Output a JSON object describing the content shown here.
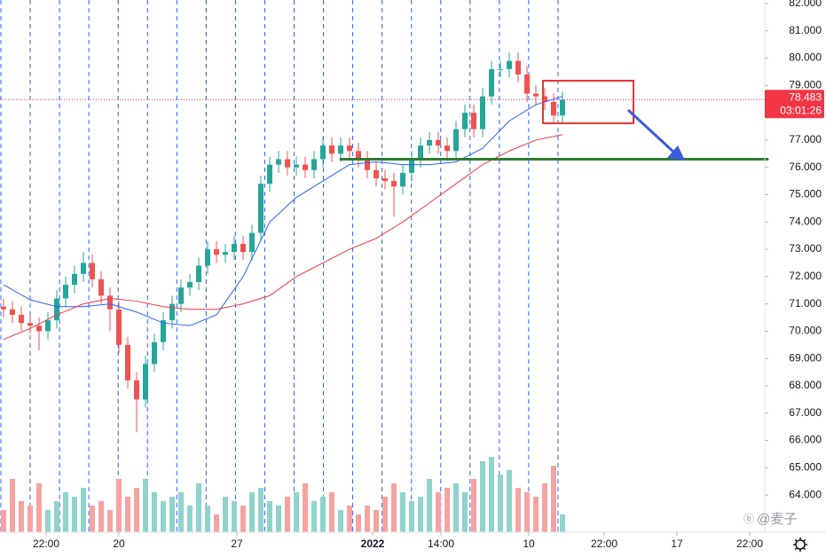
{
  "chart_data": {
    "type": "candlestick",
    "x": [
      0,
      1,
      2,
      3,
      4,
      5,
      6,
      7,
      8,
      9,
      10,
      11,
      12,
      13,
      14,
      15,
      16,
      17,
      18,
      19,
      20,
      21,
      22,
      23,
      24,
      25,
      26,
      27,
      28,
      29,
      30,
      31,
      32,
      33,
      34,
      35,
      36,
      37,
      38,
      39,
      40,
      41,
      42,
      43,
      44,
      45,
      46,
      47,
      48,
      49,
      50,
      51,
      52,
      53,
      54,
      55,
      56,
      57,
      58,
      59,
      60,
      61,
      62,
      63
    ],
    "open": [
      70.9,
      70.8,
      70.6,
      70.3,
      70.2,
      70.0,
      70.4,
      71.2,
      71.7,
      72.1,
      72.5,
      71.9,
      71.3,
      70.8,
      69.5,
      68.2,
      67.5,
      68.8,
      69.6,
      70.4,
      71.0,
      71.6,
      71.8,
      72.4,
      73.0,
      72.8,
      72.9,
      73.2,
      72.9,
      73.6,
      75.4,
      76.1,
      76.3,
      76.0,
      76.1,
      75.9,
      76.3,
      76.8,
      76.5,
      76.8,
      76.6,
      76.3,
      75.9,
      75.6,
      75.5,
      75.3,
      75.8,
      76.3,
      76.8,
      77.0,
      76.8,
      76.6,
      77.4,
      78.0,
      77.4,
      78.6,
      79.6,
      79.6,
      79.9,
      79.4,
      78.7,
      78.6,
      78.4,
      77.9
    ],
    "high": [
      71.2,
      71.1,
      70.9,
      70.6,
      70.5,
      70.7,
      71.5,
      72.0,
      72.4,
      72.9,
      72.8,
      72.2,
      71.6,
      71.1,
      69.8,
      68.5,
      69.1,
      69.9,
      70.7,
      71.3,
      71.9,
      72.1,
      72.7,
      73.3,
      73.3,
      73.2,
      73.5,
      73.5,
      73.9,
      75.7,
      76.4,
      76.6,
      76.6,
      76.4,
      76.4,
      76.6,
      77.1,
      77.1,
      77.1,
      77.1,
      76.9,
      76.6,
      76.2,
      75.9,
      75.8,
      76.1,
      76.6,
      77.1,
      77.3,
      77.3,
      77.1,
      77.7,
      78.3,
      78.3,
      78.9,
      79.9,
      79.9,
      80.2,
      80.2,
      79.7,
      79.0,
      78.9,
      78.7,
      78.78
    ],
    "low": [
      70.5,
      70.3,
      70.0,
      69.9,
      69.3,
      69.7,
      70.1,
      70.9,
      71.4,
      71.8,
      71.6,
      71.0,
      70.0,
      69.2,
      67.9,
      66.3,
      67.2,
      68.5,
      69.3,
      70.1,
      70.7,
      71.3,
      71.5,
      72.1,
      72.5,
      72.5,
      72.6,
      72.6,
      72.6,
      73.3,
      75.1,
      75.8,
      75.7,
      75.7,
      75.6,
      75.6,
      76.0,
      76.2,
      76.2,
      76.3,
      76.0,
      75.6,
      75.3,
      75.2,
      74.2,
      75.0,
      75.5,
      76.0,
      76.5,
      76.5,
      76.3,
      76.3,
      77.1,
      77.1,
      77.1,
      78.3,
      79.3,
      79.3,
      79.1,
      78.4,
      78.3,
      78.1,
      77.6,
      77.6
    ],
    "close": [
      70.8,
      70.6,
      70.3,
      70.2,
      70.0,
      70.4,
      71.2,
      71.7,
      72.1,
      72.5,
      71.9,
      71.3,
      70.8,
      69.5,
      68.2,
      67.5,
      68.8,
      69.6,
      70.4,
      71.0,
      71.6,
      71.8,
      72.4,
      73.0,
      72.8,
      72.9,
      73.2,
      72.9,
      73.6,
      75.4,
      76.1,
      76.3,
      76.0,
      76.1,
      75.9,
      76.3,
      76.8,
      76.5,
      76.8,
      76.6,
      76.3,
      75.9,
      75.6,
      75.5,
      75.3,
      75.8,
      76.3,
      76.8,
      77.0,
      76.8,
      76.6,
      77.4,
      78.0,
      77.4,
      78.6,
      79.6,
      79.6,
      79.9,
      79.4,
      78.7,
      78.6,
      78.4,
      77.9,
      78.48
    ],
    "volume": [
      25,
      60,
      35,
      30,
      55,
      25,
      35,
      45,
      40,
      50,
      30,
      35,
      25,
      60,
      40,
      50,
      60,
      45,
      35,
      40,
      45,
      30,
      55,
      30,
      20,
      40,
      35,
      30,
      45,
      50,
      35,
      30,
      40,
      45,
      55,
      35,
      40,
      45,
      25,
      30,
      20,
      30,
      25,
      40,
      55,
      45,
      35,
      40,
      60,
      45,
      50,
      55,
      45,
      60,
      80,
      85,
      65,
      70,
      50,
      45,
      40,
      55,
      75,
      20
    ],
    "volume_lim": [
      0,
      100
    ],
    "up_color": "#26a69a",
    "down_color": "#ef5350",
    "volume_up_color": "#8fd3cc",
    "volume_down_color": "#f5a3a1",
    "series": [
      {
        "color": "#2962ff",
        "x": [
          0,
          3,
          6,
          9,
          12,
          15,
          18,
          21,
          24,
          27,
          30,
          33,
          36,
          39,
          42,
          45,
          48,
          51,
          54,
          57,
          60,
          63
        ],
        "values": [
          71.7,
          71.15,
          70.9,
          70.9,
          71.0,
          70.7,
          70.3,
          70.2,
          70.6,
          72.0,
          74.0,
          74.9,
          75.5,
          76.1,
          76.2,
          76.1,
          76.1,
          76.2,
          76.7,
          77.7,
          78.3,
          78.6
        ]
      },
      {
        "color": "#f23645",
        "x": [
          0,
          3,
          6,
          9,
          12,
          15,
          18,
          21,
          24,
          27,
          30,
          33,
          36,
          39,
          42,
          45,
          48,
          51,
          54,
          57,
          60,
          63
        ],
        "values": [
          69.7,
          70.1,
          70.6,
          71.0,
          71.2,
          71.1,
          70.9,
          70.8,
          70.8,
          71.0,
          71.3,
          72.0,
          72.5,
          73.0,
          73.4,
          74.0,
          74.7,
          75.4,
          76.1,
          76.6,
          77.0,
          77.2
        ]
      }
    ],
    "support": {
      "value": 76.3,
      "x": 38,
      "color": "#2e7d32"
    },
    "last_price": {
      "value": 78.483,
      "label": "78.483"
    },
    "countdown": "03:01:26",
    "xlim": [
      -0.4,
      85.8
    ],
    "ylim": [
      62.64,
      82.13
    ],
    "xticks": [
      {
        "value": 4.8,
        "label": "22:00"
      },
      {
        "value": 13,
        "label": "20"
      },
      {
        "value": 26.3,
        "label": "27"
      },
      {
        "value": 41.6,
        "label": "2022"
      },
      {
        "value": 49.3,
        "label": "14:00"
      },
      {
        "value": 59.2,
        "label": "10"
      },
      {
        "value": 67.7,
        "label": "22:00"
      },
      {
        "value": 75.9,
        "label": "17"
      },
      {
        "value": 84.1,
        "label": "22:00"
      }
    ],
    "yticks": [
      {
        "value": 64,
        "label": "64.000"
      },
      {
        "value": 65,
        "label": "65.000"
      },
      {
        "value": 66,
        "label": "66.000"
      },
      {
        "value": 67,
        "label": "67.000"
      },
      {
        "value": 68,
        "label": "68.000"
      },
      {
        "value": 69,
        "label": "69.000"
      },
      {
        "value": 70,
        "label": "70.000"
      },
      {
        "value": 71,
        "label": "71.000"
      },
      {
        "value": 72,
        "label": "72.000"
      },
      {
        "value": 73,
        "label": "73.000"
      },
      {
        "value": 74,
        "label": "74.000"
      },
      {
        "value": 75,
        "label": "75.000"
      },
      {
        "value": 76,
        "label": "76.000"
      },
      {
        "value": 77,
        "label": "77.000"
      },
      {
        "value": 78,
        "label": "78.000"
      },
      {
        "value": 79,
        "label": "79.000"
      },
      {
        "value": 80,
        "label": "80.000"
      },
      {
        "value": 81,
        "label": "81.000"
      },
      {
        "value": 82,
        "label": "82.000"
      }
    ],
    "watermark": "@麦子"
  }
}
